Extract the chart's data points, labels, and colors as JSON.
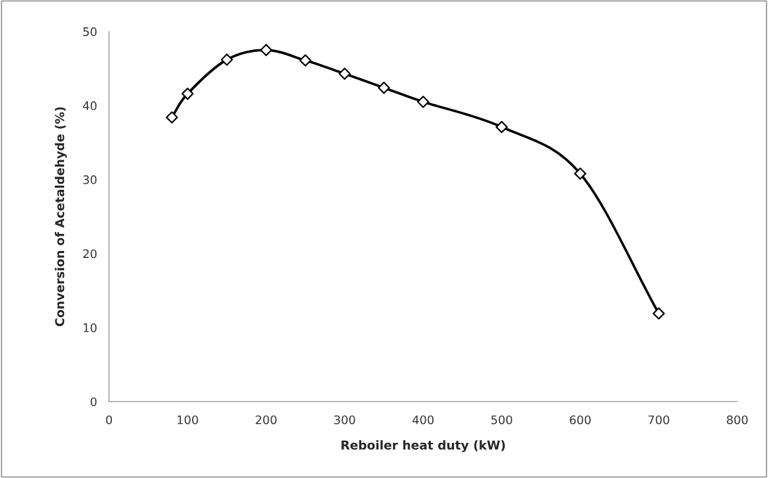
{
  "chart_data": {
    "type": "line",
    "xlabel": "Reboiler heat duty (kW)",
    "ylabel": "Conversion of Acetaldehyde (%)",
    "x": [
      80,
      100,
      150,
      200,
      250,
      300,
      350,
      400,
      500,
      600,
      700
    ],
    "series": [
      {
        "color": "#000000",
        "values": [
          38.4,
          41.6,
          46.2,
          47.5,
          46.1,
          44.3,
          42.4,
          40.5,
          37.1,
          30.8,
          11.9
        ]
      }
    ],
    "xlim": [
      0,
      800
    ],
    "xticks": [
      0,
      100,
      200,
      300,
      400,
      500,
      600,
      700,
      800
    ],
    "ylim": [
      0,
      50
    ],
    "yticks": [
      0,
      10,
      20,
      30,
      40,
      50
    ],
    "grid": false,
    "legend": false,
    "marker": "diamond",
    "line_style": "solid"
  }
}
